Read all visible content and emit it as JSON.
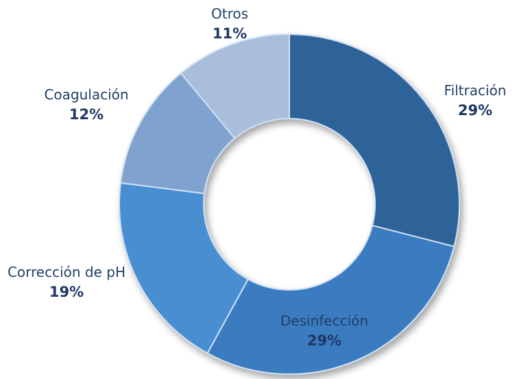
{
  "chart_data": {
    "type": "donut",
    "categories": [
      "Filtración",
      "Desinfección",
      "Corrección de pH",
      "Coagulación",
      "Otros"
    ],
    "values": [
      29,
      29,
      19,
      12,
      11
    ],
    "value_labels": [
      "29%",
      "29%",
      "19%",
      "12%",
      "11%"
    ],
    "colors": [
      "#2f6399",
      "#3b7cc0",
      "#4a8ed0",
      "#7fa2cf",
      "#a8bedb"
    ]
  }
}
